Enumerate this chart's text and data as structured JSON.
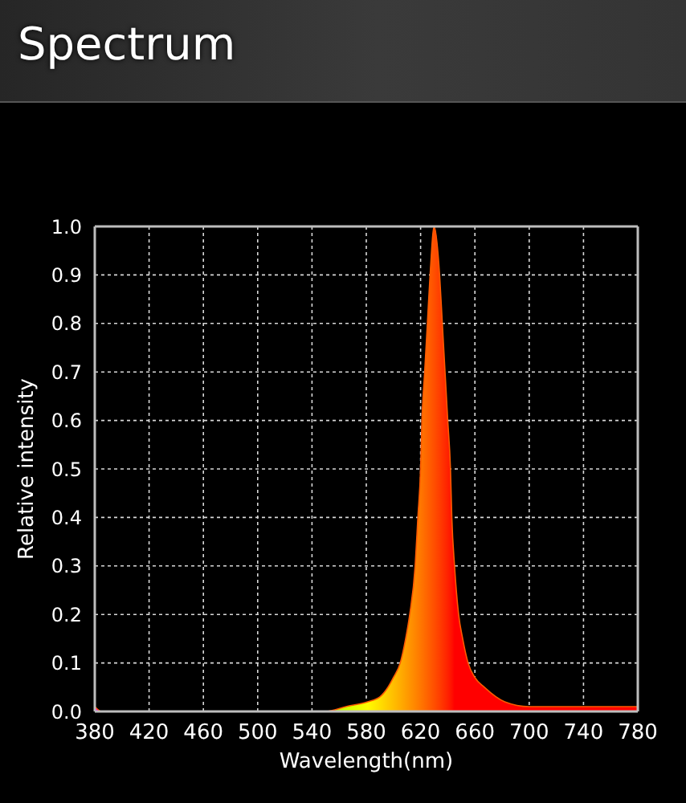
{
  "chart_data": {
    "type": "area",
    "title": "Spectrum",
    "xlabel": "Wavelength(nm)",
    "ylabel": "Relative intensity",
    "x": [
      380,
      385,
      400,
      500,
      550,
      565,
      581,
      590,
      596,
      600,
      605,
      609,
      612,
      616,
      618,
      620,
      621,
      623,
      625,
      627,
      630,
      634,
      636,
      638,
      640,
      642,
      643,
      645,
      648,
      651,
      655,
      660,
      667,
      682,
      700,
      740,
      770,
      780
    ],
    "values": [
      0.01,
      0,
      0,
      0,
      0,
      0.01,
      0.02,
      0.03,
      0.05,
      0.07,
      0.1,
      0.15,
      0.2,
      0.3,
      0.4,
      0.5,
      0.6,
      0.7,
      0.8,
      0.9,
      1.0,
      0.9,
      0.8,
      0.7,
      0.6,
      0.5,
      0.4,
      0.3,
      0.2,
      0.15,
      0.1,
      0.07,
      0.05,
      0.02,
      0.01,
      0.01,
      0.01,
      0.01
    ],
    "color": "#ff5a00",
    "xlim": [
      380,
      780
    ],
    "xticks": [
      380,
      420,
      460,
      500,
      540,
      580,
      620,
      660,
      700,
      740,
      780
    ],
    "ylim": [
      0,
      1
    ],
    "yticks": [
      {
        "value": 0,
        "label": "0.0"
      },
      0.1,
      0.2,
      0.3,
      0.4,
      0.5,
      0.6,
      0.7,
      0.8,
      0.9,
      {
        "value": 1,
        "label": "1.0"
      }
    ],
    "grid": true
  }
}
